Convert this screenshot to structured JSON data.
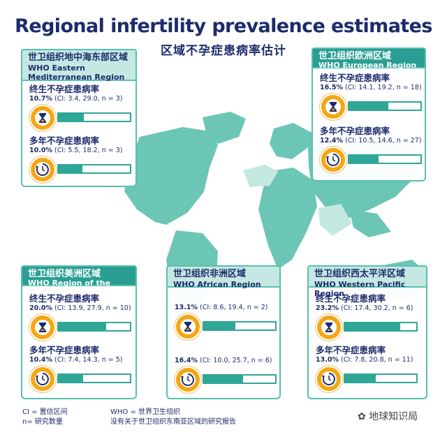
{
  "title": "Regional infertility prevalence estimates",
  "subtitle": "区域不孕症患病率估计",
  "legend": {
    "ci": "CI = 置信区间",
    "n": "n= 研究数量",
    "who": "WHO = 世界卫生组织",
    "note": "没有关于世卫组织东南亚区域的研究报告"
  },
  "watermark": "地球知识局",
  "colors": {
    "map_land": "#4fbaa8",
    "map_land_light": "#9fdad0",
    "accent": "#2ea797",
    "badge": "#f5a614",
    "navy": "#1d2b6b"
  },
  "icons": {
    "lifetime": "hourglass-icon",
    "multi_year": "clock-cycle-icon"
  },
  "chart_data": [
    {
      "type": "bar",
      "region_zh": "世卫组织地中海东部区域",
      "region_en": "WHO Eastern Mediterranean Region",
      "series": [
        {
          "label": "终生不孕症患病率",
          "value": "10.7%",
          "ci": "(CI: 3.4, 29.0, n = 3)",
          "fraction": 0.107
        },
        {
          "label": "多年不孕症患病率",
          "value": "10.0%",
          "ci": "(CI: 5.5, 18.2, n = 3)",
          "fraction": 0.1
        }
      ]
    },
    {
      "type": "bar",
      "region_zh": "世卫组织欧洲区域",
      "region_en": "WHO European Region",
      "series": [
        {
          "label": "终生不孕症患病率",
          "value": "16.5%",
          "ci": "(CI: 14.1, 19.2, n = 18)",
          "fraction": 0.165
        },
        {
          "label": "多年不孕症患病率",
          "value": "12.4%",
          "ci": "(CI: 10.5, 14.6, n = 27)",
          "fraction": 0.124
        }
      ]
    },
    {
      "type": "bar",
      "region_zh": "世卫组织美洲区域",
      "region_en": "WHO Region of the Americas",
      "series": [
        {
          "label": "终生不孕症患病率",
          "value": "20.0%",
          "ci": "(CI: 13.9, 27.9, n = 10)",
          "fraction": 0.2
        },
        {
          "label": "多年不孕症患病率",
          "value": "10.4%",
          "ci": "(CI: 7.4, 14.3, n = 5)",
          "fraction": 0.104
        }
      ]
    },
    {
      "type": "bar",
      "region_zh": "世卫组织非洲区域",
      "region_en": "WHO African Region",
      "series": [
        {
          "label": "",
          "value": "13.1%",
          "ci": "(CI: 8.6, 19.4, n = 2)",
          "fraction": 0.131
        },
        {
          "label": "",
          "value": "16.4%",
          "ci": "(CI: 10.0, 25.7, n = 6)",
          "fraction": 0.164
        }
      ]
    },
    {
      "type": "bar",
      "region_zh": "世卫组织西太平洋区域",
      "region_en": "WHO Western Pacific Region",
      "series": [
        {
          "label": "终生不孕症患病率",
          "value": "23.2%",
          "ci": "(CI: 17.4, 30.2, n = 6)",
          "fraction": 0.232
        },
        {
          "label": "多年不孕症患病率",
          "value": "13.0%",
          "ci": "(CI: 7.8, 20.8, n = 11)",
          "fraction": 0.13
        }
      ]
    }
  ]
}
